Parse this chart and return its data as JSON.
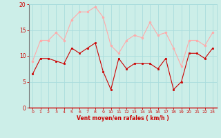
{
  "x": [
    0,
    1,
    2,
    3,
    4,
    5,
    6,
    7,
    8,
    9,
    10,
    11,
    12,
    13,
    14,
    15,
    16,
    17,
    18,
    19,
    20,
    21,
    22,
    23
  ],
  "vent_moyen": [
    6.5,
    9.5,
    9.5,
    9.0,
    8.5,
    11.5,
    10.5,
    11.5,
    12.5,
    7.0,
    3.5,
    9.5,
    7.5,
    8.5,
    8.5,
    8.5,
    7.5,
    9.5,
    3.5,
    5.0,
    10.5,
    10.5,
    9.5,
    11.5
  ],
  "rafales": [
    9.0,
    13.0,
    13.0,
    14.5,
    13.0,
    17.0,
    18.5,
    18.5,
    19.5,
    17.5,
    12.0,
    10.5,
    13.0,
    14.0,
    13.5,
    16.5,
    14.0,
    14.5,
    11.5,
    8.0,
    13.0,
    13.0,
    12.0,
    14.5
  ],
  "moyen_color": "#cc0000",
  "rafales_color": "#ffaaaa",
  "bg_color": "#cceee8",
  "grid_color": "#aadddd",
  "xlabel": "Vent moyen/en rafales ( km/h )",
  "xlabel_color": "#cc0000",
  "tick_color": "#cc0000",
  "ylim": [
    0,
    20
  ],
  "yticks": [
    0,
    5,
    10,
    15,
    20
  ],
  "xlim": [
    -0.5,
    23.5
  ],
  "spine_left_color": "#777777",
  "spine_bottom_color": "#cc0000"
}
